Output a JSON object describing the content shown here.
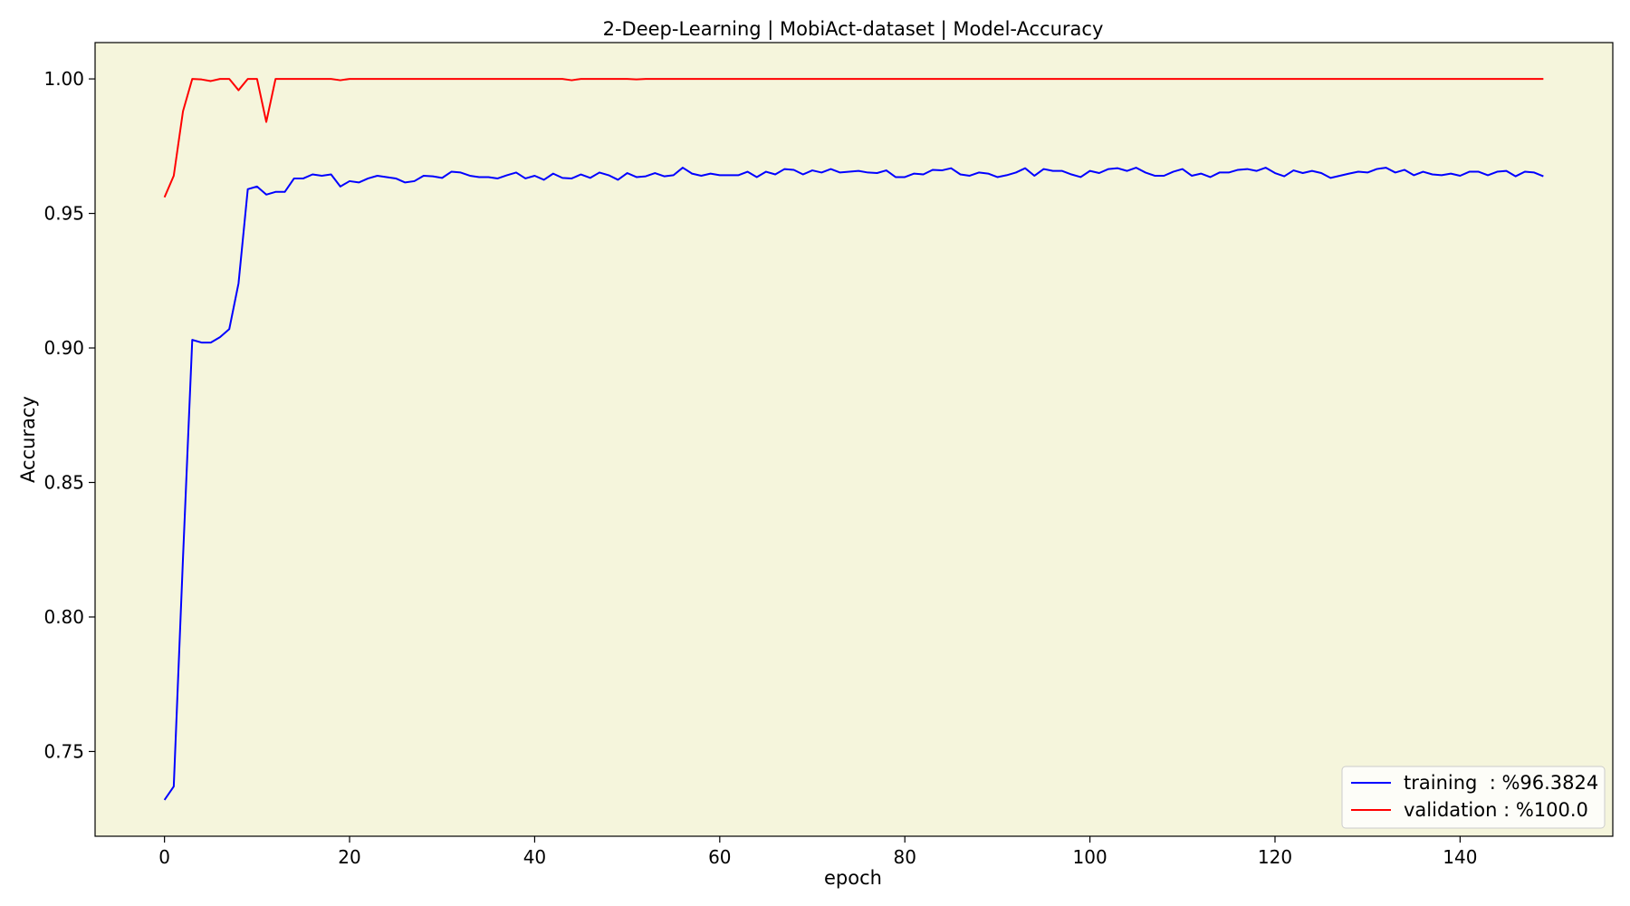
{
  "chart_data": {
    "type": "line",
    "title": "2-Deep-Learning | MobiAct-dataset  | Model-Accuracy",
    "xlabel": "epoch",
    "ylabel": "Accuracy",
    "xlim": [
      -7.5,
      156.5
    ],
    "ylim": [
      0.7185,
      1.0135
    ],
    "xticks": [
      0,
      20,
      40,
      60,
      80,
      100,
      120,
      140
    ],
    "yticks": [
      0.75,
      0.8,
      0.85,
      0.9,
      0.95,
      1.0
    ],
    "ytick_labels": [
      "0.75",
      "0.80",
      "0.85",
      "0.90",
      "0.95",
      "1.00"
    ],
    "plot_background": "#f5f5dc",
    "grid": false,
    "legend_position": "lower right",
    "x": [
      0,
      1,
      2,
      3,
      4,
      5,
      6,
      7,
      8,
      9,
      10,
      11,
      12,
      13,
      14,
      15,
      16,
      17,
      18,
      19,
      20,
      21,
      22,
      23,
      24,
      25,
      26,
      27,
      28,
      29,
      30,
      31,
      32,
      33,
      34,
      35,
      36,
      37,
      38,
      39,
      40,
      41,
      42,
      43,
      44,
      45,
      46,
      47,
      48,
      49,
      50,
      51,
      52,
      53,
      54,
      55,
      56,
      57,
      58,
      59,
      60,
      61,
      62,
      63,
      64,
      65,
      66,
      67,
      68,
      69,
      70,
      71,
      72,
      73,
      74,
      75,
      76,
      77,
      78,
      79,
      80,
      81,
      82,
      83,
      84,
      85,
      86,
      87,
      88,
      89,
      90,
      91,
      92,
      93,
      94,
      95,
      96,
      97,
      98,
      99,
      100,
      101,
      102,
      103,
      104,
      105,
      106,
      107,
      108,
      109,
      110,
      111,
      112,
      113,
      114,
      115,
      116,
      117,
      118,
      119,
      120,
      121,
      122,
      123,
      124,
      125,
      126,
      127,
      128,
      129,
      130,
      131,
      132,
      133,
      134,
      135,
      136,
      137,
      138,
      139,
      140,
      141,
      142,
      143,
      144,
      145,
      146,
      147,
      148,
      149
    ],
    "series": [
      {
        "name": "training  : %96.3824",
        "color": "#0000ff",
        "values": [
          0.732,
          0.737,
          0.822,
          0.903,
          0.902,
          0.902,
          0.904,
          0.907,
          0.924,
          0.959,
          0.96,
          0.957,
          0.958,
          0.958,
          0.963,
          0.963,
          0.9645,
          0.964,
          0.9645,
          0.96,
          0.962,
          0.9615,
          0.963,
          0.964,
          0.9635,
          0.963,
          0.9615,
          0.962,
          0.964,
          0.9638,
          0.9632,
          0.9655,
          0.9652,
          0.964,
          0.9635,
          0.9635,
          0.963,
          0.9642,
          0.9652,
          0.963,
          0.964,
          0.9625,
          0.9648,
          0.9632,
          0.963,
          0.9645,
          0.9632,
          0.9652,
          0.9642,
          0.9625,
          0.965,
          0.9635,
          0.9638,
          0.965,
          0.9638,
          0.9642,
          0.967,
          0.9648,
          0.964,
          0.9648,
          0.9642,
          0.9642,
          0.9642,
          0.9655,
          0.9635,
          0.9655,
          0.9645,
          0.9665,
          0.9662,
          0.9645,
          0.966,
          0.9652,
          0.9665,
          0.9652,
          0.9655,
          0.9658,
          0.9652,
          0.965,
          0.966,
          0.9635,
          0.9635,
          0.9648,
          0.9645,
          0.9662,
          0.966,
          0.9668,
          0.9645,
          0.964,
          0.9652,
          0.9648,
          0.9635,
          0.9642,
          0.9652,
          0.9668,
          0.964,
          0.9665,
          0.9658,
          0.9658,
          0.9645,
          0.9635,
          0.9658,
          0.965,
          0.9665,
          0.9668,
          0.9658,
          0.967,
          0.9652,
          0.964,
          0.964,
          0.9655,
          0.9665,
          0.964,
          0.9648,
          0.9635,
          0.9652,
          0.9652,
          0.9662,
          0.9665,
          0.9658,
          0.967,
          0.965,
          0.9638,
          0.966,
          0.965,
          0.9658,
          0.965,
          0.9632,
          0.964,
          0.9648,
          0.9655,
          0.9652,
          0.9665,
          0.967,
          0.9652,
          0.9662,
          0.9642,
          0.9655,
          0.9645,
          0.9642,
          0.9648,
          0.964,
          0.9655,
          0.9655,
          0.9642,
          0.9655,
          0.9658,
          0.9638,
          0.9655,
          0.9652,
          0.9638
        ]
      },
      {
        "name": "validation : %100.0",
        "color": "#ff0000",
        "values": [
          0.956,
          0.964,
          0.988,
          1.0,
          0.9998,
          0.9992,
          1.0,
          1.0,
          0.9958,
          1.0,
          1.0,
          0.984,
          1.0,
          1.0,
          1.0,
          1.0,
          1.0,
          1.0,
          1.0,
          0.9995,
          1.0,
          1.0,
          1.0,
          1.0,
          1.0,
          1.0,
          1.0,
          1.0,
          1.0,
          1.0,
          1.0,
          1.0,
          1.0,
          1.0,
          1.0,
          1.0,
          1.0,
          1.0,
          1.0,
          1.0,
          1.0,
          1.0,
          1.0,
          1.0,
          0.9995,
          1.0,
          1.0,
          1.0,
          1.0,
          1.0,
          1.0,
          0.9998,
          1.0,
          1.0,
          1.0,
          1.0,
          1.0,
          1.0,
          1.0,
          1.0,
          1.0,
          1.0,
          1.0,
          1.0,
          1.0,
          1.0,
          1.0,
          1.0,
          1.0,
          1.0,
          1.0,
          1.0,
          1.0,
          1.0,
          1.0,
          1.0,
          1.0,
          1.0,
          1.0,
          1.0,
          1.0,
          1.0,
          1.0,
          1.0,
          1.0,
          1.0,
          1.0,
          1.0,
          1.0,
          1.0,
          1.0,
          1.0,
          1.0,
          1.0,
          1.0,
          1.0,
          1.0,
          1.0,
          1.0,
          1.0,
          1.0,
          1.0,
          1.0,
          1.0,
          1.0,
          1.0,
          1.0,
          1.0,
          1.0,
          1.0,
          1.0,
          1.0,
          1.0,
          1.0,
          1.0,
          1.0,
          1.0,
          1.0,
          1.0,
          1.0,
          1.0,
          1.0,
          1.0,
          1.0,
          1.0,
          1.0,
          1.0,
          1.0,
          1.0,
          1.0,
          1.0,
          1.0,
          1.0,
          1.0,
          1.0,
          1.0,
          1.0,
          1.0,
          1.0,
          1.0,
          1.0,
          1.0,
          1.0,
          1.0,
          1.0,
          1.0,
          1.0,
          1.0,
          1.0,
          1.0
        ]
      }
    ]
  }
}
